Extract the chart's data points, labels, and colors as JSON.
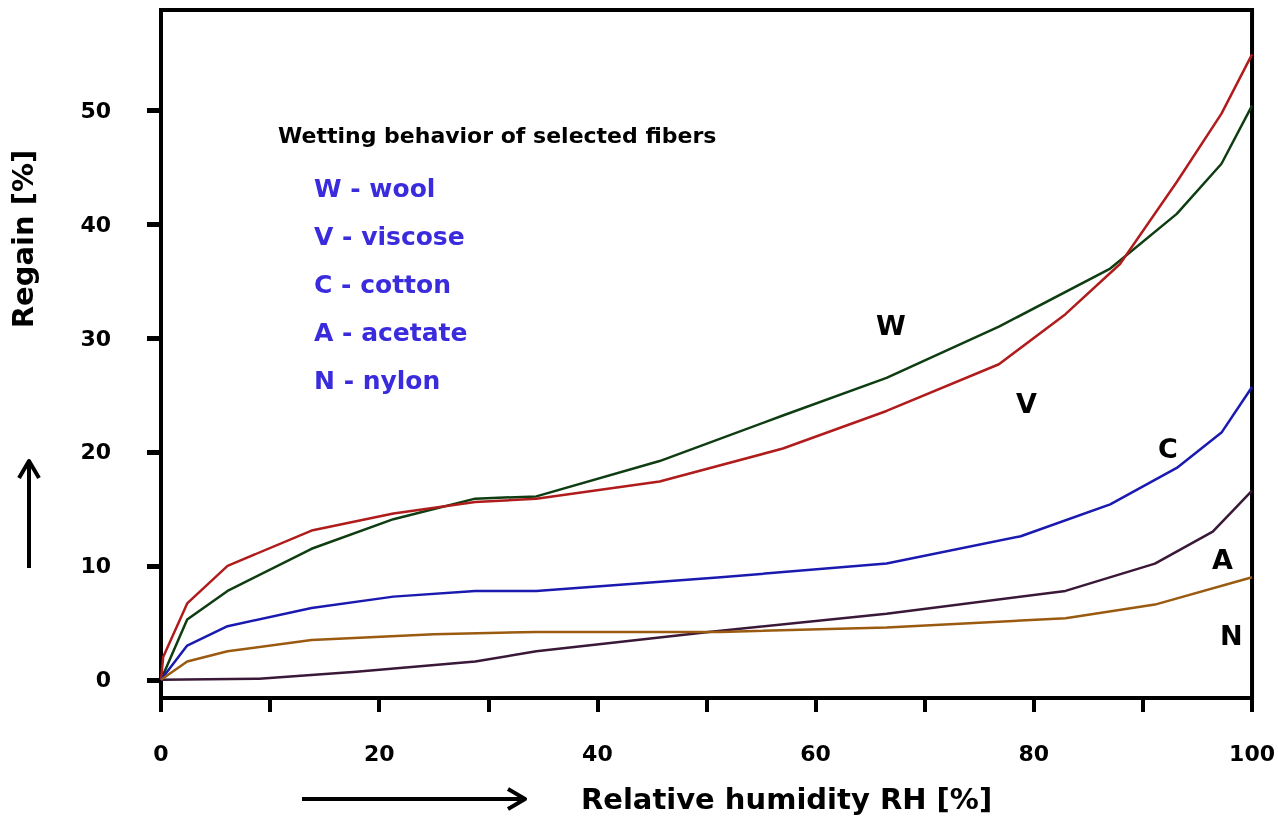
{
  "chart_data": {
    "type": "line",
    "title": "Wetting behavior of selected fibers",
    "xlabel": "Relative humidity RH [%]",
    "ylabel": "Regain [%]",
    "xlim": [
      0,
      100
    ],
    "ylim": [
      -1.6,
      58.8
    ],
    "xticks": [
      0,
      {
        "value": 10,
        "label": null
      },
      20,
      {
        "value": 30,
        "label": null
      },
      40,
      {
        "value": 50,
        "label": null
      },
      60,
      {
        "value": 70,
        "label": null
      },
      80,
      {
        "value": 90,
        "label": null
      },
      100
    ],
    "yticks": [
      0,
      10,
      20,
      30,
      40,
      50
    ],
    "grid": false,
    "marker": "none",
    "line_style": "solid",
    "series": [
      {
        "name": "W",
        "color": "#0f3d12",
        "x": [
          0,
          2.4,
          6.1,
          13.8,
          21.3,
          28.8,
          34.4,
          45.7,
          57,
          66.5,
          76.8,
          87,
          93.1,
          97.2,
          100
        ],
        "values": [
          0,
          5.3,
          7.8,
          11.5,
          14.1,
          15.9,
          16.1,
          19.2,
          23.2,
          26.5,
          31,
          36.1,
          40.9,
          45.3,
          50.4
        ]
      },
      {
        "name": "V",
        "color": "#b01c1c",
        "x": [
          0,
          0.2,
          2.4,
          6.1,
          13.8,
          21.3,
          28.8,
          34.4,
          45.7,
          57,
          66.5,
          76.8,
          82.9,
          87.9,
          93.1,
          97.2,
          100
        ],
        "values": [
          0,
          2,
          6.7,
          10,
          13.1,
          14.6,
          15.6,
          15.9,
          17.4,
          20.3,
          23.6,
          27.7,
          32.1,
          36.5,
          43.7,
          49.7,
          54.9
        ]
      },
      {
        "name": "C",
        "color": "#1a1ab0",
        "x": [
          0,
          2.4,
          6.1,
          13.8,
          21.3,
          28.8,
          34.4,
          51.3,
          66.5,
          78.8,
          87,
          93.1,
          97.2,
          100
        ],
        "values": [
          0,
          3,
          4.7,
          6.3,
          7.3,
          7.8,
          7.8,
          9,
          10.2,
          12.6,
          15.4,
          18.6,
          21.7,
          25.7
        ]
      },
      {
        "name": "A",
        "color": "#3a1838",
        "x": [
          0,
          9,
          17.9,
          28.8,
          34.4,
          50.2,
          66.5,
          82.9,
          91.1,
          96.4,
          100
        ],
        "values": [
          0,
          0.1,
          0.7,
          1.6,
          2.5,
          4.2,
          5.8,
          7.8,
          10.2,
          13,
          16.6
        ]
      },
      {
        "name": "N",
        "color": "#9a5a10",
        "x": [
          0,
          2.4,
          6.1,
          13.8,
          25,
          34.4,
          51.3,
          66.5,
          82.9,
          91.1,
          100
        ],
        "values": [
          0,
          1.6,
          2.5,
          3.5,
          4,
          4.2,
          4.2,
          4.6,
          5.4,
          6.6,
          9
        ]
      }
    ],
    "annotations": [
      "W - wool",
      "V - viscose",
      "C - cotton",
      "A - acetate",
      "N - nylon"
    ]
  }
}
